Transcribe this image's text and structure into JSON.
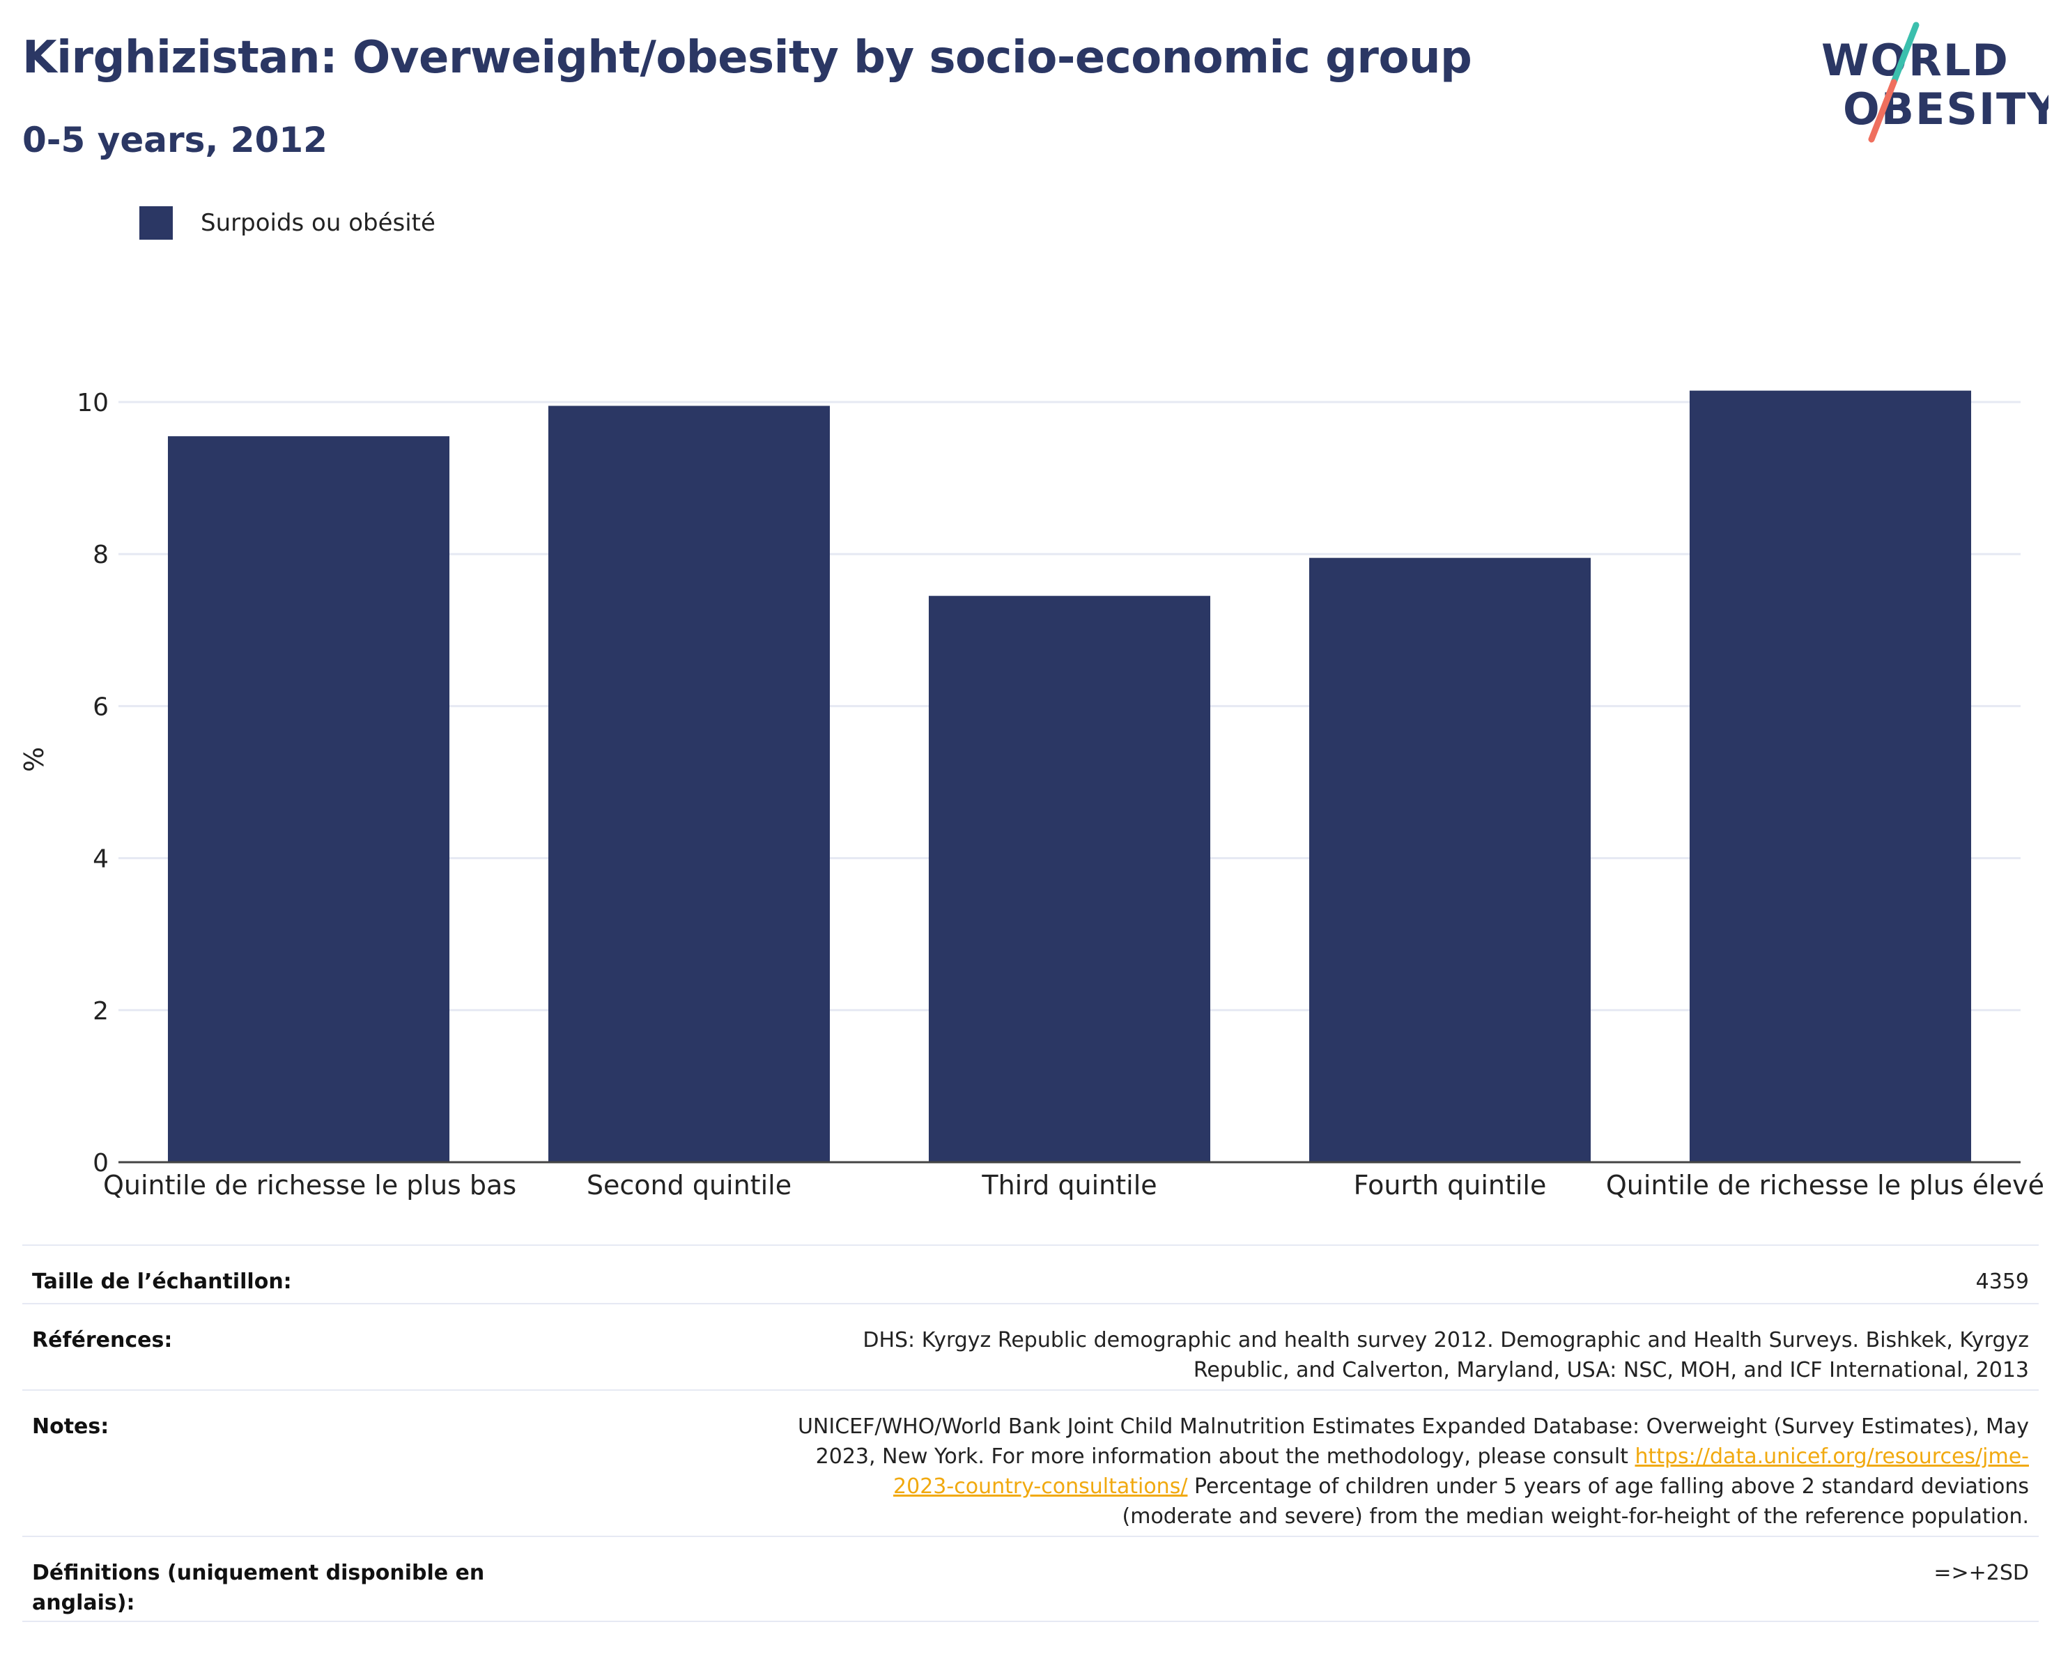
{
  "header": {
    "title": "Kirghizistan: Overweight/obesity by socio-economic group",
    "subtitle": "0-5 years, 2012"
  },
  "logo": {
    "line1": "WORLD",
    "line2": "OBESITY",
    "accent_teal": "#3bbfad",
    "accent_coral": "#ef6f5e"
  },
  "chart_data": {
    "type": "bar",
    "categories": [
      "Quintile de richesse le plus bas",
      "Second quintile",
      "Third quintile",
      "Fourth quintile",
      "Quintile de richesse le plus élevé"
    ],
    "series": [
      {
        "name": "Surpoids ou obésité",
        "values": [
          9.55,
          9.95,
          7.45,
          7.95,
          10.15
        ],
        "color": "#2b3764"
      }
    ],
    "ylabel": "%",
    "xlabel": "",
    "ylim": [
      0,
      11
    ],
    "yticks": [
      0,
      2,
      4,
      6,
      8,
      10
    ],
    "grid": true,
    "legend": "top-left"
  },
  "info_table": {
    "sample_label": "Taille de l’échantillon:",
    "sample_value": "4359",
    "references_label": "Références:",
    "references_value": "DHS: Kyrgyz Republic demographic and health survey 2012. Demographic and Health Surveys. Bishkek, Kyrgyz Republic, and Calverton, Maryland, USA: NSC, MOH, and ICF International, 2013",
    "notes_label": "Notes:",
    "notes_text1": "UNICEF/WHO/World Bank Joint Child Malnutrition Estimates Expanded Database: Overweight (Survey Estimates), May 2023, New York. For more information about the methodology, please consult",
    "notes_link": "https://data.unicef.org/resources/jme-2023-country-consultations/",
    "notes_text2": "Percentage of children under 5 years of age falling above 2 standard deviations (moderate and severe) from the median weight-for-height of the reference population.",
    "definitions_label": "Définitions (uniquement disponible en anglais):",
    "definitions_value": "=>+2SD"
  }
}
